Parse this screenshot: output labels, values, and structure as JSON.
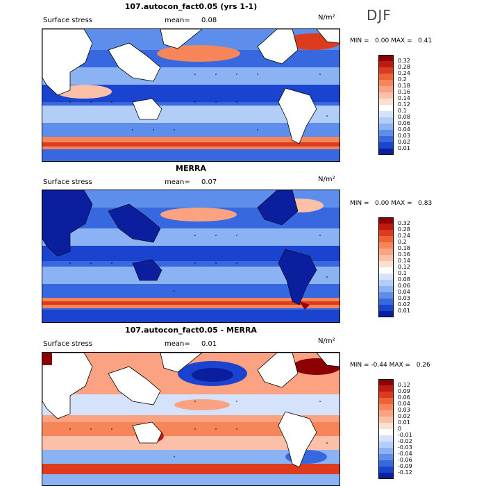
{
  "season": "DJF",
  "panels": [
    {
      "title": "107.autocon_fact0.05 (yrs 1-1)",
      "field_label": "Surface stress",
      "mean_label": "mean=",
      "mean_value": "0.08",
      "units": "N/m²",
      "min_label": "MIN =",
      "min_value": "0.00",
      "max_label": "MAX =",
      "max_value": "0.41",
      "colorbar_labels": [
        "0.32",
        "0.28",
        "0.24",
        "0.2",
        "0.18",
        "0.16",
        "0.14",
        "0.12",
        "0.1",
        "0.08",
        "0.06",
        "0.04",
        "0.03",
        "0.02",
        "0.01"
      ],
      "colorbar_colors": [
        "#8b0000",
        "#c01a10",
        "#dd3b1e",
        "#ee6336",
        "#f6855a",
        "#fba282",
        "#fcc0a8",
        "#fbdfcf",
        "#ffffff",
        "#d4e3fb",
        "#b2cdf7",
        "#8bb2f2",
        "#5d8eeb",
        "#3768df",
        "#1a44cf",
        "#0b1f9e"
      ]
    },
    {
      "title": "MERRA",
      "field_label": "Surface stress",
      "mean_label": "mean=",
      "mean_value": "0.07",
      "units": "N/m²",
      "min_label": "MIN =",
      "min_value": "0.00",
      "max_label": "MAX =",
      "max_value": "0.83",
      "colorbar_labels": [
        "0.32",
        "0.28",
        "0.24",
        "0.2",
        "0.18",
        "0.16",
        "0.14",
        "0.12",
        "0.1",
        "0.08",
        "0.06",
        "0.04",
        "0.03",
        "0.02",
        "0.01"
      ],
      "colorbar_colors": [
        "#8b0000",
        "#c01a10",
        "#dd3b1e",
        "#ee6336",
        "#f6855a",
        "#fba282",
        "#fcc0a8",
        "#fbdfcf",
        "#ffffff",
        "#d4e3fb",
        "#b2cdf7",
        "#8bb2f2",
        "#5d8eeb",
        "#3768df",
        "#1a44cf",
        "#0b1f9e"
      ]
    },
    {
      "title": "107.autocon_fact0.05 - MERRA",
      "field_label": "Surface stress",
      "mean_label": "mean=",
      "mean_value": "0.01",
      "units": "N/m²",
      "min_label": "MIN =",
      "min_value": "-0.44",
      "max_label": "MAX =",
      "max_value": "0.26",
      "colorbar_labels": [
        "0.12",
        "0.09",
        "0.06",
        "0.04",
        "0.03",
        "0.02",
        "0.01",
        "0",
        "-0.01",
        "-0.02",
        "-0.03",
        "-0.04",
        "-0.06",
        "-0.09",
        "-0.12"
      ],
      "colorbar_colors": [
        "#8b0000",
        "#c01a10",
        "#dd3b1e",
        "#ee6336",
        "#f6855a",
        "#fba282",
        "#fcc0a8",
        "#fbdfcf",
        "#ffffff",
        "#d4e3fb",
        "#b2cdf7",
        "#8bb2f2",
        "#5d8eeb",
        "#3768df",
        "#1a44cf",
        "#0b1f9e"
      ]
    }
  ]
}
